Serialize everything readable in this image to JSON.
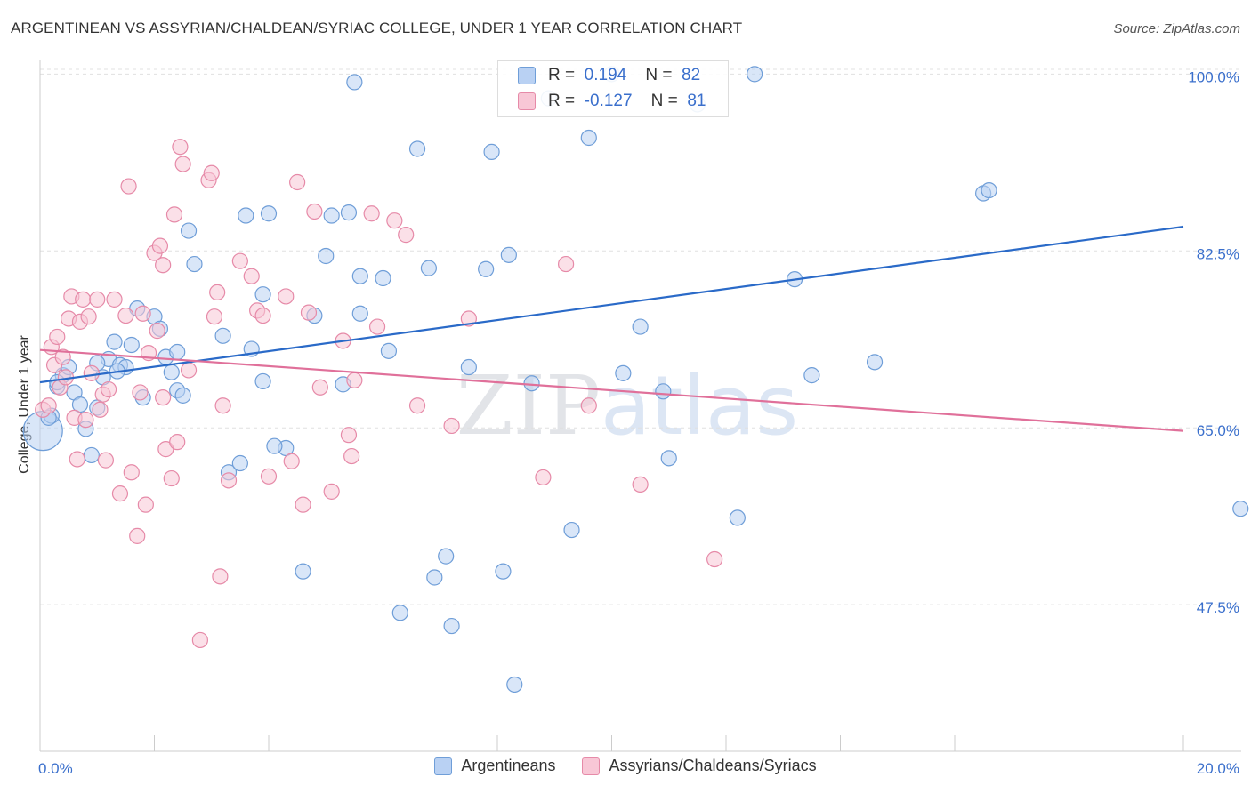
{
  "title": "ARGENTINEAN VS ASSYRIAN/CHALDEAN/SYRIAC COLLEGE, UNDER 1 YEAR CORRELATION CHART",
  "source": "Source: ZipAtlas.com",
  "watermark": "ZIPatlas",
  "colors": {
    "blue_fill": "#b9d1f3",
    "blue_stroke": "#6f9ed8",
    "blue_line": "#2a6ac8",
    "pink_fill": "#f8c7d6",
    "pink_stroke": "#e68aa8",
    "pink_line": "#e0709a",
    "tick_text": "#3a6fcc",
    "grid": "#e0e0e0"
  },
  "stats": [
    {
      "r_label": "R =",
      "r_value": "0.194",
      "n_label": "N =",
      "n_value": "82",
      "color": "blue"
    },
    {
      "r_label": "R =",
      "r_value": "-0.127",
      "n_label": "N =",
      "n_value": "81",
      "color": "pink"
    }
  ],
  "chart_data": {
    "type": "scatter",
    "title": "ARGENTINEAN VS ASSYRIAN/CHALDEAN/SYRIAC COLLEGE, UNDER 1 YEAR CORRELATION CHART",
    "xlabel": "",
    "ylabel": "College, Under 1 year",
    "xlim": [
      0,
      20
    ],
    "ylim": [
      33,
      101
    ],
    "x_tick_labels": [
      "0.0%",
      "20.0%"
    ],
    "y_ticks": [
      47.5,
      65.0,
      82.5,
      100.0
    ],
    "y_tick_labels": [
      "47.5%",
      "65.0%",
      "82.5%",
      "100.0%"
    ],
    "grid": "horizontal dashed",
    "legend_placement": "bottom-center",
    "series": [
      {
        "name": "Argentineans",
        "color": "blue",
        "trend": {
          "x": [
            0,
            20
          ],
          "y": [
            69.5,
            84.9
          ]
        },
        "points": [
          [
            0.05,
            64.7
          ],
          [
            0.2,
            66.2
          ],
          [
            0.3,
            69.1
          ],
          [
            0.4,
            70.2
          ],
          [
            0.5,
            71.0
          ],
          [
            0.3,
            69.5
          ],
          [
            0.6,
            68.5
          ],
          [
            0.7,
            67.3
          ],
          [
            0.8,
            64.9
          ],
          [
            0.9,
            62.3
          ],
          [
            1.0,
            67.0
          ],
          [
            1.1,
            70.0
          ],
          [
            1.2,
            71.8
          ],
          [
            1.3,
            73.5
          ],
          [
            1.4,
            71.2
          ],
          [
            1.5,
            71.0
          ],
          [
            1.6,
            73.2
          ],
          [
            1.8,
            68.0
          ],
          [
            1.7,
            76.8
          ],
          [
            2.0,
            76.0
          ],
          [
            2.1,
            74.8
          ],
          [
            2.2,
            72.0
          ],
          [
            2.3,
            70.5
          ],
          [
            2.4,
            68.7
          ],
          [
            2.5,
            68.2
          ],
          [
            2.6,
            84.5
          ],
          [
            2.7,
            81.2
          ],
          [
            3.2,
            74.1
          ],
          [
            3.3,
            60.6
          ],
          [
            3.5,
            61.5
          ],
          [
            3.7,
            72.8
          ],
          [
            3.6,
            86.0
          ],
          [
            3.9,
            69.6
          ],
          [
            4.0,
            86.2
          ],
          [
            4.3,
            63.0
          ],
          [
            4.1,
            63.2
          ],
          [
            4.6,
            50.8
          ],
          [
            4.8,
            76.1
          ],
          [
            5.1,
            86.0
          ],
          [
            5.0,
            82.0
          ],
          [
            5.3,
            69.3
          ],
          [
            5.4,
            86.3
          ],
          [
            5.6,
            80.0
          ],
          [
            5.5,
            99.2
          ],
          [
            6.0,
            79.8
          ],
          [
            6.1,
            72.6
          ],
          [
            6.3,
            46.7
          ],
          [
            6.8,
            80.8
          ],
          [
            6.6,
            92.6
          ],
          [
            7.1,
            52.3
          ],
          [
            7.2,
            45.4
          ],
          [
            7.5,
            71.0
          ],
          [
            7.8,
            80.7
          ],
          [
            7.9,
            92.3
          ],
          [
            8.1,
            50.8
          ],
          [
            8.2,
            82.1
          ],
          [
            8.3,
            39.6
          ],
          [
            8.6,
            69.4
          ],
          [
            8.9,
            97.6
          ],
          [
            9.3,
            54.9
          ],
          [
            9.6,
            93.7
          ],
          [
            10.0,
            100.0
          ],
          [
            10.2,
            70.4
          ],
          [
            10.9,
            68.6
          ],
          [
            11.0,
            62.0
          ],
          [
            11.5,
            97.0
          ],
          [
            12.2,
            56.1
          ],
          [
            12.5,
            100.0
          ],
          [
            13.2,
            79.7
          ],
          [
            13.5,
            70.2
          ],
          [
            14.6,
            71.5
          ],
          [
            16.5,
            88.2
          ],
          [
            16.6,
            88.5
          ],
          [
            21.0,
            57.0
          ],
          [
            1.0,
            71.4
          ],
          [
            6.9,
            50.2
          ],
          [
            3.9,
            78.2
          ],
          [
            5.6,
            76.3
          ],
          [
            10.5,
            75.0
          ],
          [
            2.4,
            72.5
          ],
          [
            0.15,
            66.0
          ],
          [
            1.35,
            70.6
          ]
        ]
      },
      {
        "name": "Assyrians/Chaldeans/Syriacs",
        "color": "pink",
        "trend": {
          "x": [
            0,
            20
          ],
          "y": [
            72.7,
            64.7
          ]
        },
        "points": [
          [
            0.05,
            66.8
          ],
          [
            0.15,
            67.2
          ],
          [
            0.2,
            73.0
          ],
          [
            0.25,
            71.2
          ],
          [
            0.3,
            74.0
          ],
          [
            0.35,
            69.0
          ],
          [
            0.4,
            72.0
          ],
          [
            0.5,
            75.8
          ],
          [
            0.55,
            78.0
          ],
          [
            0.6,
            66.0
          ],
          [
            0.65,
            61.9
          ],
          [
            0.7,
            75.5
          ],
          [
            0.75,
            77.7
          ],
          [
            0.8,
            65.8
          ],
          [
            0.85,
            76.0
          ],
          [
            0.9,
            70.4
          ],
          [
            1.0,
            77.7
          ],
          [
            1.05,
            66.8
          ],
          [
            1.1,
            68.3
          ],
          [
            1.15,
            61.8
          ],
          [
            1.2,
            68.8
          ],
          [
            1.3,
            77.7
          ],
          [
            1.4,
            58.5
          ],
          [
            1.5,
            76.1
          ],
          [
            1.55,
            88.9
          ],
          [
            1.6,
            60.6
          ],
          [
            1.7,
            54.3
          ],
          [
            1.75,
            68.5
          ],
          [
            1.8,
            76.3
          ],
          [
            1.85,
            57.4
          ],
          [
            1.9,
            72.4
          ],
          [
            2.0,
            82.3
          ],
          [
            2.05,
            74.6
          ],
          [
            2.1,
            83.0
          ],
          [
            2.15,
            81.1
          ],
          [
            2.2,
            62.9
          ],
          [
            2.3,
            60.0
          ],
          [
            2.35,
            86.1
          ],
          [
            2.4,
            63.6
          ],
          [
            2.45,
            92.8
          ],
          [
            2.5,
            91.1
          ],
          [
            2.6,
            70.7
          ],
          [
            2.8,
            44.0
          ],
          [
            2.95,
            89.5
          ],
          [
            3.0,
            90.2
          ],
          [
            3.1,
            78.4
          ],
          [
            3.15,
            50.3
          ],
          [
            3.2,
            67.2
          ],
          [
            3.3,
            59.8
          ],
          [
            3.5,
            81.5
          ],
          [
            3.7,
            80.0
          ],
          [
            3.8,
            76.6
          ],
          [
            3.9,
            76.1
          ],
          [
            4.0,
            60.2
          ],
          [
            4.3,
            78.0
          ],
          [
            4.4,
            61.7
          ],
          [
            4.5,
            89.3
          ],
          [
            4.6,
            57.4
          ],
          [
            4.7,
            76.4
          ],
          [
            4.8,
            86.4
          ],
          [
            4.9,
            69.0
          ],
          [
            5.1,
            58.7
          ],
          [
            5.3,
            73.6
          ],
          [
            5.4,
            64.3
          ],
          [
            5.45,
            62.2
          ],
          [
            5.5,
            69.7
          ],
          [
            5.8,
            86.2
          ],
          [
            5.9,
            75.0
          ],
          [
            6.2,
            85.5
          ],
          [
            6.4,
            84.1
          ],
          [
            6.6,
            67.2
          ],
          [
            7.2,
            65.2
          ],
          [
            7.5,
            75.8
          ],
          [
            8.8,
            60.1
          ],
          [
            9.2,
            81.2
          ],
          [
            9.6,
            67.2
          ],
          [
            10.5,
            59.4
          ],
          [
            11.8,
            52.0
          ],
          [
            3.05,
            76.0
          ],
          [
            2.15,
            68.0
          ],
          [
            0.45,
            70.0
          ]
        ]
      }
    ]
  },
  "legend": [
    {
      "label": "Argentineans",
      "color": "blue"
    },
    {
      "label": "Assyrians/Chaldeans/Syriacs",
      "color": "pink"
    }
  ]
}
